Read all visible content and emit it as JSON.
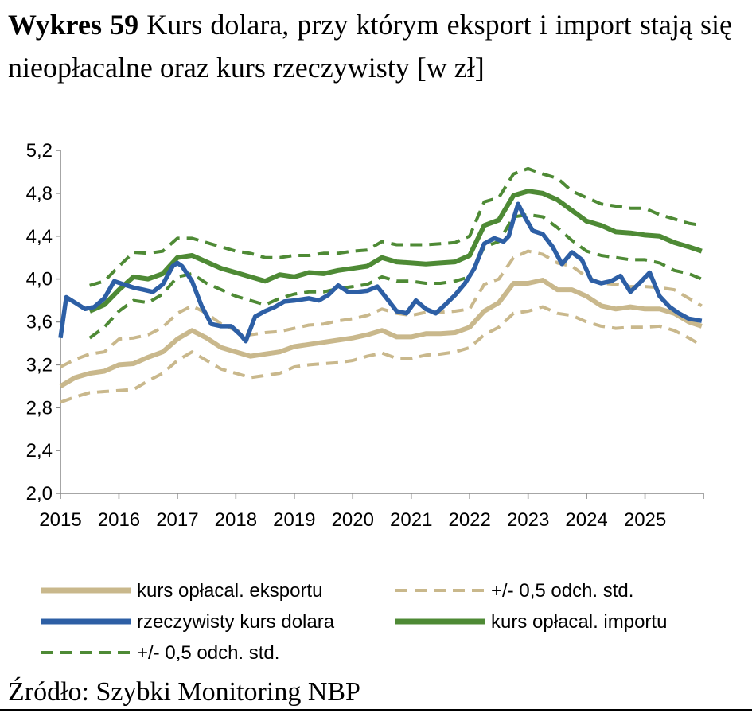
{
  "title": {
    "bold": "Wykres 59",
    "rest": "Kurs dolara, przy którym eksport i import stają się nieopłacalne oraz kurs rzeczywisty [w zł]"
  },
  "source": "Źródło: Szybki Monitoring NBP",
  "chart_data": {
    "type": "line",
    "title": "Kurs dolara, przy którym eksport i import stają się nieopłacalne oraz kurs rzeczywisty [w zł]",
    "ylim": [
      2.0,
      5.2
    ],
    "yticks": [
      "2,0",
      "2,4",
      "2,8",
      "3,2",
      "3,6",
      "4,0",
      "4,4",
      "4,8",
      "5,2"
    ],
    "ytick_values": [
      2.0,
      2.4,
      2.8,
      3.2,
      3.6,
      4.0,
      4.4,
      4.8,
      5.2
    ],
    "xlim": [
      2015.0,
      2026.0
    ],
    "xticks": [
      "2015",
      "2016",
      "2017",
      "2018",
      "2019",
      "2020",
      "2021",
      "2022",
      "2023",
      "2024",
      "2025"
    ],
    "xtick_values": [
      2015,
      2016,
      2017,
      2018,
      2019,
      2020,
      2021,
      2022,
      2023,
      2024,
      2025
    ],
    "series": [
      {
        "key": "export_band_hi",
        "name": "+/- 0,5 odch. std.",
        "color": "#C9B88C",
        "style": "dashed",
        "x": [
          2015.0,
          2015.25,
          2015.5,
          2015.75,
          2016.0,
          2016.25,
          2016.5,
          2016.75,
          2017.0,
          2017.25,
          2017.5,
          2017.75,
          2018.0,
          2018.25,
          2018.5,
          2018.75,
          2019.0,
          2019.25,
          2019.5,
          2019.75,
          2020.0,
          2020.25,
          2020.5,
          2020.75,
          2021.0,
          2021.25,
          2021.5,
          2021.75,
          2022.0,
          2022.25,
          2022.5,
          2022.75,
          2023.0,
          2023.25,
          2023.5,
          2023.75,
          2024.0,
          2024.25,
          2024.5,
          2024.75,
          2025.0,
          2025.25,
          2025.5,
          2025.75,
          2025.97
        ],
        "values": [
          3.18,
          3.25,
          3.3,
          3.32,
          3.44,
          3.45,
          3.48,
          3.55,
          3.68,
          3.75,
          3.68,
          3.58,
          3.52,
          3.48,
          3.5,
          3.51,
          3.54,
          3.57,
          3.58,
          3.61,
          3.63,
          3.66,
          3.72,
          3.68,
          3.66,
          3.69,
          3.69,
          3.7,
          3.72,
          3.95,
          4.0,
          4.2,
          4.26,
          4.23,
          4.15,
          4.12,
          4.02,
          3.96,
          3.95,
          3.93,
          3.93,
          3.92,
          3.9,
          3.82,
          3.75
        ]
      },
      {
        "key": "export",
        "name": "kurs opłacal. eksportu",
        "color": "#C9B88C",
        "style": "solid",
        "x": [
          2015.0,
          2015.25,
          2015.5,
          2015.75,
          2016.0,
          2016.25,
          2016.5,
          2016.75,
          2017.0,
          2017.25,
          2017.5,
          2017.75,
          2018.0,
          2018.25,
          2018.5,
          2018.75,
          2019.0,
          2019.25,
          2019.5,
          2019.75,
          2020.0,
          2020.25,
          2020.5,
          2020.75,
          2021.0,
          2021.25,
          2021.5,
          2021.75,
          2022.0,
          2022.25,
          2022.5,
          2022.75,
          2023.0,
          2023.25,
          2023.5,
          2023.75,
          2024.0,
          2024.25,
          2024.5,
          2024.75,
          2025.0,
          2025.25,
          2025.5,
          2025.75,
          2025.97
        ],
        "values": [
          3.0,
          3.08,
          3.12,
          3.14,
          3.2,
          3.21,
          3.27,
          3.32,
          3.44,
          3.52,
          3.45,
          3.36,
          3.32,
          3.28,
          3.3,
          3.32,
          3.37,
          3.39,
          3.41,
          3.43,
          3.45,
          3.48,
          3.52,
          3.46,
          3.46,
          3.49,
          3.49,
          3.5,
          3.55,
          3.7,
          3.78,
          3.96,
          3.96,
          3.99,
          3.9,
          3.9,
          3.84,
          3.75,
          3.72,
          3.74,
          3.72,
          3.72,
          3.68,
          3.6,
          3.56
        ]
      },
      {
        "key": "export_band_lo",
        "name": "+/- 0,5 odch. std.",
        "color": "#C9B88C",
        "style": "dashed",
        "x": [
          2015.0,
          2015.25,
          2015.5,
          2015.75,
          2016.0,
          2016.25,
          2016.5,
          2016.75,
          2017.0,
          2017.25,
          2017.5,
          2017.75,
          2018.0,
          2018.25,
          2018.5,
          2018.75,
          2019.0,
          2019.25,
          2019.5,
          2019.75,
          2020.0,
          2020.25,
          2020.5,
          2020.75,
          2021.0,
          2021.25,
          2021.5,
          2021.75,
          2022.0,
          2022.25,
          2022.5,
          2022.75,
          2023.0,
          2023.25,
          2023.5,
          2023.75,
          2024.0,
          2024.25,
          2024.5,
          2024.75,
          2025.0,
          2025.25,
          2025.5,
          2025.75,
          2025.97
        ],
        "values": [
          2.85,
          2.9,
          2.94,
          2.95,
          2.96,
          2.97,
          3.05,
          3.12,
          3.24,
          3.32,
          3.24,
          3.16,
          3.12,
          3.08,
          3.1,
          3.12,
          3.18,
          3.2,
          3.21,
          3.22,
          3.24,
          3.28,
          3.31,
          3.26,
          3.26,
          3.29,
          3.3,
          3.32,
          3.36,
          3.48,
          3.55,
          3.68,
          3.7,
          3.74,
          3.68,
          3.66,
          3.6,
          3.56,
          3.54,
          3.55,
          3.55,
          3.56,
          3.52,
          3.45,
          3.38
        ]
      },
      {
        "key": "import_band_hi",
        "name": "+/- 0,5 odch. std.",
        "color": "#4E8A35",
        "style": "dashed",
        "x": [
          2015.5,
          2015.75,
          2016.0,
          2016.25,
          2016.5,
          2016.75,
          2017.0,
          2017.25,
          2017.5,
          2017.75,
          2018.0,
          2018.25,
          2018.5,
          2018.75,
          2019.0,
          2019.25,
          2019.5,
          2019.75,
          2020.0,
          2020.25,
          2020.5,
          2020.75,
          2021.0,
          2021.25,
          2021.5,
          2021.75,
          2022.0,
          2022.25,
          2022.5,
          2022.75,
          2023.0,
          2023.25,
          2023.5,
          2023.75,
          2024.0,
          2024.25,
          2024.5,
          2024.75,
          2025.0,
          2025.25,
          2025.5,
          2025.75,
          2025.97
        ],
        "values": [
          3.94,
          3.98,
          4.12,
          4.25,
          4.24,
          4.26,
          4.38,
          4.38,
          4.34,
          4.3,
          4.26,
          4.24,
          4.2,
          4.2,
          4.22,
          4.22,
          4.24,
          4.24,
          4.26,
          4.27,
          4.35,
          4.32,
          4.32,
          4.32,
          4.33,
          4.34,
          4.4,
          4.72,
          4.76,
          4.98,
          5.03,
          4.98,
          4.94,
          4.82,
          4.76,
          4.7,
          4.68,
          4.66,
          4.66,
          4.6,
          4.56,
          4.52,
          4.5
        ]
      },
      {
        "key": "import",
        "name": "kurs opłacal. importu",
        "color": "#4E8A35",
        "style": "solid",
        "x": [
          2015.5,
          2015.75,
          2016.0,
          2016.25,
          2016.5,
          2016.75,
          2017.0,
          2017.25,
          2017.5,
          2017.75,
          2018.0,
          2018.25,
          2018.5,
          2018.75,
          2019.0,
          2019.25,
          2019.5,
          2019.75,
          2020.0,
          2020.25,
          2020.5,
          2020.75,
          2021.0,
          2021.25,
          2021.5,
          2021.75,
          2022.0,
          2022.25,
          2022.5,
          2022.75,
          2023.0,
          2023.25,
          2023.5,
          2023.75,
          2024.0,
          2024.25,
          2024.5,
          2024.75,
          2025.0,
          2025.25,
          2025.5,
          2025.75,
          2025.97
        ],
        "values": [
          3.7,
          3.76,
          3.9,
          4.02,
          4.0,
          4.05,
          4.2,
          4.22,
          4.16,
          4.1,
          4.06,
          4.02,
          3.98,
          4.04,
          4.02,
          4.06,
          4.05,
          4.08,
          4.1,
          4.12,
          4.2,
          4.16,
          4.15,
          4.14,
          4.15,
          4.16,
          4.22,
          4.5,
          4.55,
          4.78,
          4.82,
          4.8,
          4.74,
          4.64,
          4.54,
          4.5,
          4.44,
          4.43,
          4.41,
          4.4,
          4.34,
          4.3,
          4.26
        ]
      },
      {
        "key": "import_band_lo",
        "name": "+/- 0,5 odch. std.",
        "color": "#4E8A35",
        "style": "dashed",
        "x": [
          2015.5,
          2015.75,
          2016.0,
          2016.25,
          2016.5,
          2016.75,
          2017.0,
          2017.25,
          2017.5,
          2017.75,
          2018.0,
          2018.25,
          2018.5,
          2018.75,
          2019.0,
          2019.25,
          2019.5,
          2019.75,
          2020.0,
          2020.25,
          2020.5,
          2020.75,
          2021.0,
          2021.25,
          2021.5,
          2021.75,
          2022.0,
          2022.25,
          2022.5,
          2022.75,
          2023.0,
          2023.25,
          2023.5,
          2023.75,
          2024.0,
          2024.25,
          2024.5,
          2024.75,
          2025.0,
          2025.25,
          2025.5,
          2025.75,
          2025.97
        ],
        "values": [
          3.45,
          3.55,
          3.7,
          3.8,
          3.78,
          3.86,
          4.02,
          4.05,
          3.96,
          3.9,
          3.84,
          3.8,
          3.76,
          3.82,
          3.86,
          3.88,
          3.88,
          3.91,
          3.93,
          3.95,
          4.02,
          3.98,
          3.98,
          3.96,
          3.96,
          3.98,
          4.02,
          4.3,
          4.35,
          4.58,
          4.6,
          4.58,
          4.48,
          4.36,
          4.26,
          4.22,
          4.2,
          4.18,
          4.18,
          4.15,
          4.08,
          4.05,
          4.0
        ]
      },
      {
        "key": "actual",
        "name": "rzeczywisty kurs dolara",
        "color": "#2D5FA5",
        "style": "solid",
        "x": [
          2015.0,
          2015.1,
          2015.25,
          2015.42,
          2015.58,
          2015.75,
          2015.92,
          2016.08,
          2016.25,
          2016.42,
          2016.58,
          2016.75,
          2016.92,
          2017.0,
          2017.08,
          2017.25,
          2017.42,
          2017.58,
          2017.75,
          2017.92,
          2018.08,
          2018.17,
          2018.33,
          2018.5,
          2018.67,
          2018.83,
          2019.0,
          2019.25,
          2019.42,
          2019.58,
          2019.75,
          2019.92,
          2020.08,
          2020.25,
          2020.42,
          2020.58,
          2020.75,
          2020.92,
          2021.08,
          2021.25,
          2021.42,
          2021.58,
          2021.75,
          2021.92,
          2022.08,
          2022.25,
          2022.42,
          2022.58,
          2022.67,
          2022.75,
          2022.83,
          2022.92,
          2023.08,
          2023.25,
          2023.42,
          2023.58,
          2023.75,
          2023.92,
          2024.08,
          2024.25,
          2024.42,
          2024.58,
          2024.75,
          2024.92,
          2025.08,
          2025.25,
          2025.42,
          2025.58,
          2025.75,
          2025.97
        ],
        "values": [
          3.45,
          3.83,
          3.78,
          3.72,
          3.74,
          3.82,
          3.98,
          3.95,
          3.92,
          3.9,
          3.88,
          3.95,
          4.12,
          4.15,
          4.12,
          3.98,
          3.74,
          3.58,
          3.56,
          3.56,
          3.48,
          3.42,
          3.65,
          3.7,
          3.74,
          3.79,
          3.8,
          3.82,
          3.8,
          3.85,
          3.94,
          3.88,
          3.88,
          3.89,
          3.93,
          3.82,
          3.7,
          3.68,
          3.8,
          3.72,
          3.68,
          3.76,
          3.85,
          3.96,
          4.1,
          4.33,
          4.38,
          4.35,
          4.4,
          4.56,
          4.7,
          4.6,
          4.45,
          4.42,
          4.3,
          4.14,
          4.25,
          4.18,
          3.99,
          3.96,
          3.98,
          4.03,
          3.88,
          3.97,
          4.06,
          3.84,
          3.74,
          3.68,
          3.63,
          3.61
        ]
      }
    ],
    "legend": [
      {
        "label": "kurs opłacal. eksportu",
        "color": "#C9B88C",
        "style": "solid"
      },
      {
        "label": "+/- 0,5 odch. std.",
        "color": "#C9B88C",
        "style": "dashed"
      },
      {
        "label": "rzeczywisty kurs dolara",
        "color": "#2D5FA5",
        "style": "solid"
      },
      {
        "label": "kurs opłacal. importu",
        "color": "#4E8A35",
        "style": "solid"
      },
      {
        "label": "+/- 0,5 odch. std.",
        "color": "#4E8A35",
        "style": "dashed"
      }
    ],
    "legend_position": "bottom",
    "grid": false
  }
}
